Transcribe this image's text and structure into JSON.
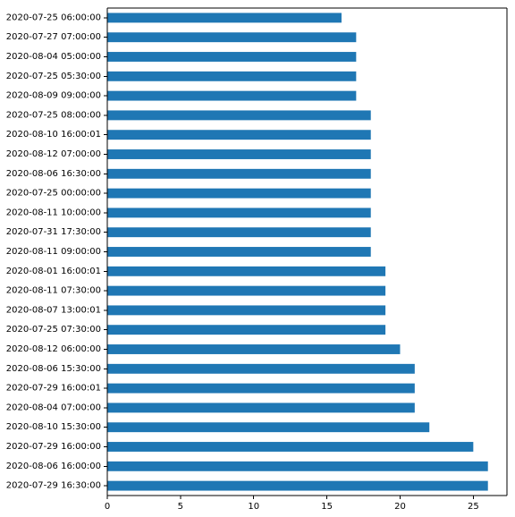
{
  "chart_data": {
    "type": "bar",
    "orientation": "horizontal",
    "categories": [
      "2020-07-25 06:00:00",
      "2020-07-27 07:00:00",
      "2020-08-04 05:00:00",
      "2020-07-25 05:30:00",
      "2020-08-09 09:00:00",
      "2020-07-25 08:00:00",
      "2020-08-10 16:00:01",
      "2020-08-12 07:00:00",
      "2020-08-06 16:30:00",
      "2020-07-25 00:00:00",
      "2020-08-11 10:00:00",
      "2020-07-31 17:30:00",
      "2020-08-11 09:00:00",
      "2020-08-01 16:00:01",
      "2020-08-11 07:30:00",
      "2020-08-07 13:00:01",
      "2020-07-25 07:30:00",
      "2020-08-12 06:00:00",
      "2020-08-06 15:30:00",
      "2020-07-29 16:00:01",
      "2020-08-04 07:00:00",
      "2020-08-10 15:30:00",
      "2020-07-29 16:00:00",
      "2020-08-06 16:00:00",
      "2020-07-29 16:30:00"
    ],
    "values": [
      16,
      17,
      17,
      17,
      17,
      18,
      18,
      18,
      18,
      18,
      18,
      18,
      18,
      19,
      19,
      19,
      19,
      20,
      21,
      21,
      21,
      22,
      25,
      26,
      26
    ],
    "title": "",
    "xlabel": "",
    "ylabel": "",
    "xlim": [
      0,
      27.3
    ],
    "xticks": [
      0,
      5,
      10,
      15,
      20,
      25
    ],
    "xtick_labels": [
      "0",
      "5",
      "10",
      "15",
      "20",
      "25"
    ],
    "grid": false,
    "legend": "none",
    "bar_color": "#1f77b4",
    "axis_color": "#000000",
    "background": "#ffffff"
  }
}
